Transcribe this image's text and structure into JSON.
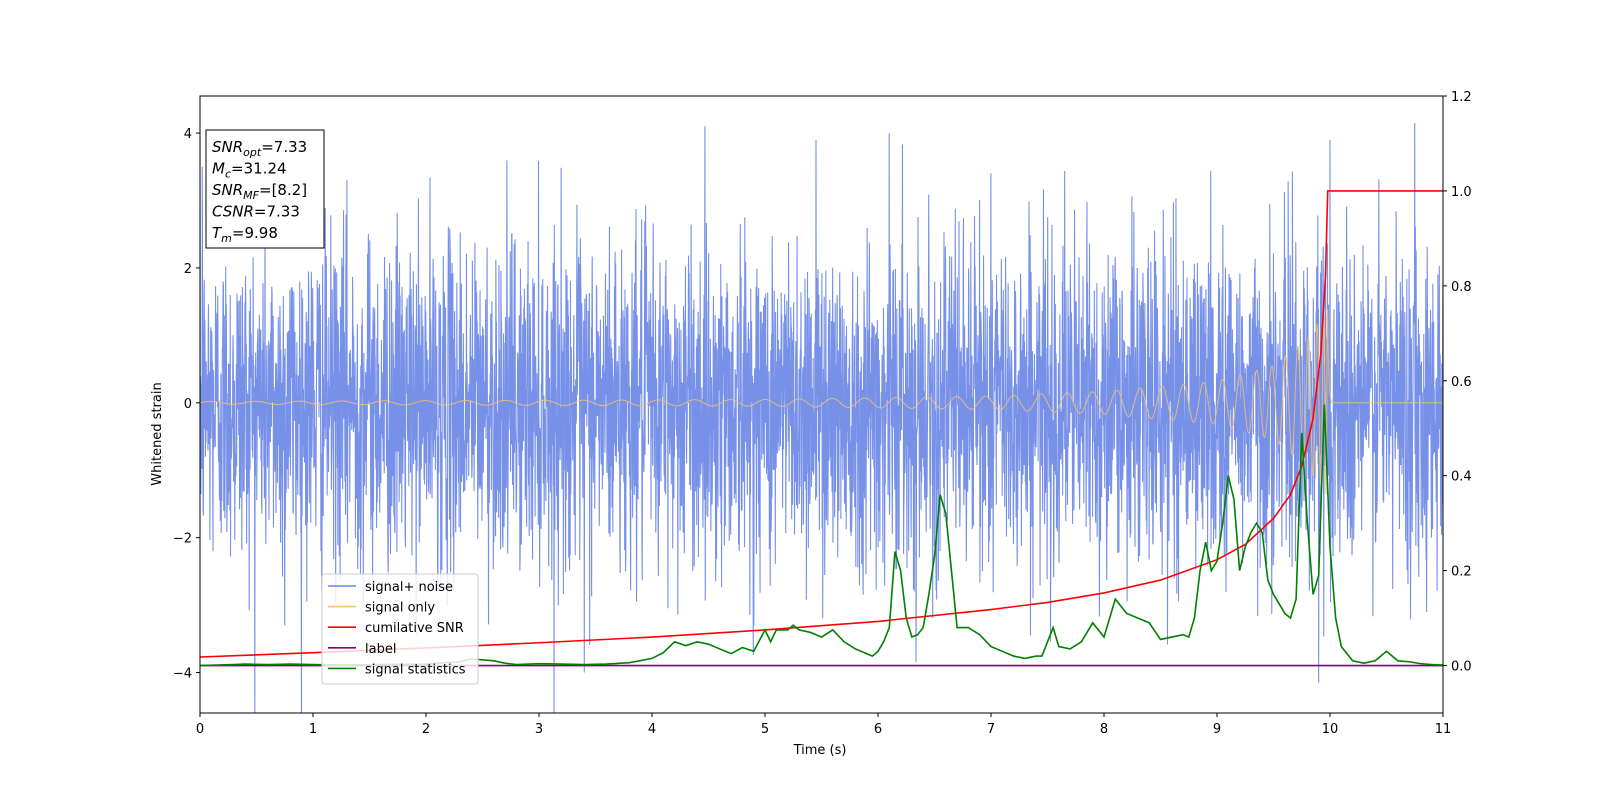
{
  "chart_data": {
    "type": "line",
    "xlabel": "Time (s)",
    "ylabel": "Whitened strain",
    "xlim": [
      0,
      11
    ],
    "ylim_left": [
      -4.6,
      4.55
    ],
    "ylim_right": [
      -0.1,
      1.2
    ],
    "x_ticks": [
      0,
      1,
      2,
      3,
      4,
      5,
      6,
      7,
      8,
      9,
      10,
      11
    ],
    "y_ticks_left": [
      -4,
      -2,
      0,
      2,
      4
    ],
    "y_ticks_right": [
      0.0,
      0.2,
      0.4,
      0.6,
      0.8,
      1.0,
      1.2
    ],
    "grid": false,
    "legend_position": "lower-left",
    "info_box": [
      {
        "name": "SNR",
        "sub": "opt",
        "value": "=7.33"
      },
      {
        "name": "M",
        "sub": "c",
        "value": "=31.24"
      },
      {
        "name": "SNR",
        "sub": "MF",
        "value": "=[8.2]"
      },
      {
        "name": "CSNR",
        "sub": "",
        "value": "=7.33"
      },
      {
        "name": "T",
        "sub": "m",
        "value": "=9.98"
      }
    ],
    "series": [
      {
        "name": "signal+ noise",
        "color": "#6b87e6",
        "axis": "left",
        "description_kind": "noise",
        "x_range": [
          0,
          11
        ],
        "typical_amplitude": 1.3,
        "peak_values": [
          [
            0.02,
            3.5
          ],
          [
            0.75,
            -3.3
          ],
          [
            1.3,
            3.3
          ],
          [
            3.4,
            -4.0
          ],
          [
            5.45,
            3.9
          ],
          [
            5.45,
            -3.9
          ],
          [
            6.1,
            4.0
          ],
          [
            7.0,
            3.4
          ],
          [
            9.9,
            -4.15
          ],
          [
            10.0,
            3.9
          ],
          [
            10.75,
            4.15
          ]
        ]
      },
      {
        "name": "signal only",
        "color": "#f5c16c",
        "axis": "left",
        "description_kind": "chirp",
        "t_merger": 9.98,
        "envelope": [
          [
            0,
            0.02
          ],
          [
            5,
            0.05
          ],
          [
            7,
            0.1
          ],
          [
            8,
            0.17
          ],
          [
            9,
            0.32
          ],
          [
            9.5,
            0.55
          ],
          [
            9.8,
            0.95
          ],
          [
            9.98,
            1.4
          ]
        ]
      },
      {
        "name": "cumilative SNR",
        "color": "#ff0000",
        "axis": "right",
        "x": [
          0,
          1,
          2,
          3,
          4,
          5,
          6,
          7,
          7.5,
          8,
          8.5,
          9,
          9.25,
          9.5,
          9.65,
          9.75,
          9.85,
          9.92,
          9.96,
          9.98,
          10,
          11
        ],
        "y": [
          0.018,
          0.027,
          0.037,
          0.048,
          0.06,
          0.075,
          0.093,
          0.118,
          0.133,
          0.153,
          0.18,
          0.223,
          0.255,
          0.31,
          0.36,
          0.42,
          0.52,
          0.66,
          0.82,
          1.0,
          1.0,
          1.0
        ]
      },
      {
        "name": "label",
        "color": "#800080",
        "axis": "right",
        "x": [
          0,
          11
        ],
        "y": [
          0,
          0
        ]
      },
      {
        "name": "signal statistics",
        "color": "#008000",
        "axis": "right",
        "x": [
          0,
          0.3,
          0.4,
          0.6,
          0.8,
          1.0,
          1.3,
          1.6,
          2.0,
          2.3,
          2.4,
          2.6,
          2.7,
          2.8,
          3.0,
          3.2,
          3.4,
          3.6,
          3.8,
          4.0,
          4.1,
          4.2,
          4.3,
          4.4,
          4.5,
          4.6,
          4.7,
          4.8,
          4.9,
          5.0,
          5.05,
          5.1,
          5.2,
          5.25,
          5.3,
          5.4,
          5.5,
          5.6,
          5.7,
          5.8,
          5.9,
          5.95,
          6.0,
          6.05,
          6.1,
          6.15,
          6.2,
          6.25,
          6.3,
          6.35,
          6.4,
          6.45,
          6.5,
          6.55,
          6.6,
          6.65,
          6.7,
          6.8,
          6.9,
          7.0,
          7.1,
          7.2,
          7.3,
          7.4,
          7.45,
          7.5,
          7.55,
          7.6,
          7.7,
          7.8,
          7.9,
          8.0,
          8.1,
          8.2,
          8.3,
          8.4,
          8.5,
          8.6,
          8.7,
          8.75,
          8.8,
          8.85,
          8.9,
          8.95,
          9.0,
          9.05,
          9.1,
          9.15,
          9.2,
          9.25,
          9.3,
          9.35,
          9.4,
          9.45,
          9.5,
          9.55,
          9.6,
          9.65,
          9.7,
          9.75,
          9.8,
          9.85,
          9.9,
          9.95,
          10.0,
          10.05,
          10.1,
          10.2,
          10.3,
          10.4,
          10.45,
          10.5,
          10.6,
          10.7,
          10.8,
          10.9,
          11.0
        ],
        "y": [
          0.0,
          0.002,
          0.003,
          0.002,
          0.003,
          0.002,
          0.001,
          0.002,
          0.003,
          0.008,
          0.014,
          0.01,
          0.005,
          0.002,
          0.004,
          0.003,
          0.002,
          0.003,
          0.006,
          0.015,
          0.027,
          0.05,
          0.042,
          0.05,
          0.045,
          0.035,
          0.025,
          0.038,
          0.03,
          0.075,
          0.05,
          0.075,
          0.075,
          0.085,
          0.075,
          0.07,
          0.06,
          0.075,
          0.05,
          0.035,
          0.025,
          0.02,
          0.03,
          0.05,
          0.08,
          0.24,
          0.2,
          0.1,
          0.06,
          0.065,
          0.08,
          0.15,
          0.23,
          0.36,
          0.32,
          0.2,
          0.08,
          0.08,
          0.065,
          0.04,
          0.03,
          0.02,
          0.015,
          0.02,
          0.02,
          0.05,
          0.08,
          0.04,
          0.035,
          0.05,
          0.09,
          0.06,
          0.14,
          0.11,
          0.1,
          0.09,
          0.055,
          0.06,
          0.065,
          0.06,
          0.1,
          0.2,
          0.26,
          0.2,
          0.22,
          0.3,
          0.4,
          0.35,
          0.2,
          0.25,
          0.28,
          0.3,
          0.28,
          0.18,
          0.15,
          0.13,
          0.11,
          0.1,
          0.14,
          0.49,
          0.3,
          0.15,
          0.19,
          0.55,
          0.25,
          0.1,
          0.04,
          0.01,
          0.005,
          0.01,
          0.02,
          0.03,
          0.01,
          0.008,
          0.004,
          0.002,
          0.001
        ]
      }
    ]
  }
}
